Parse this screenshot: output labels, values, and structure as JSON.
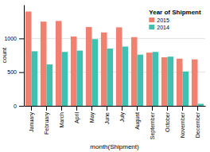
{
  "chart_data": {
    "type": "bar",
    "title": "Year of Shipment",
    "categories": [
      "January",
      "February",
      "March",
      "April",
      "May",
      "June",
      "July",
      "August",
      "September",
      "October",
      "November",
      "December"
    ],
    "series": [
      {
        "name": "2015",
        "color": "#F08070",
        "values": [
          1400,
          1250,
          1260,
          1030,
          1170,
          1090,
          1165,
          1020,
          790,
          720,
          700,
          690
        ]
      },
      {
        "name": "2014",
        "color": "#40C0B0",
        "values": [
          810,
          615,
          800,
          820,
          990,
          850,
          880,
          760,
          800,
          730,
          510,
          30
        ]
      }
    ],
    "xlabel": "month(Shipment)",
    "ylabel": "count",
    "ylim": [
      0,
      1500
    ],
    "yticks": [
      0,
      500,
      1000
    ],
    "grid": true,
    "legend": "upper right"
  }
}
